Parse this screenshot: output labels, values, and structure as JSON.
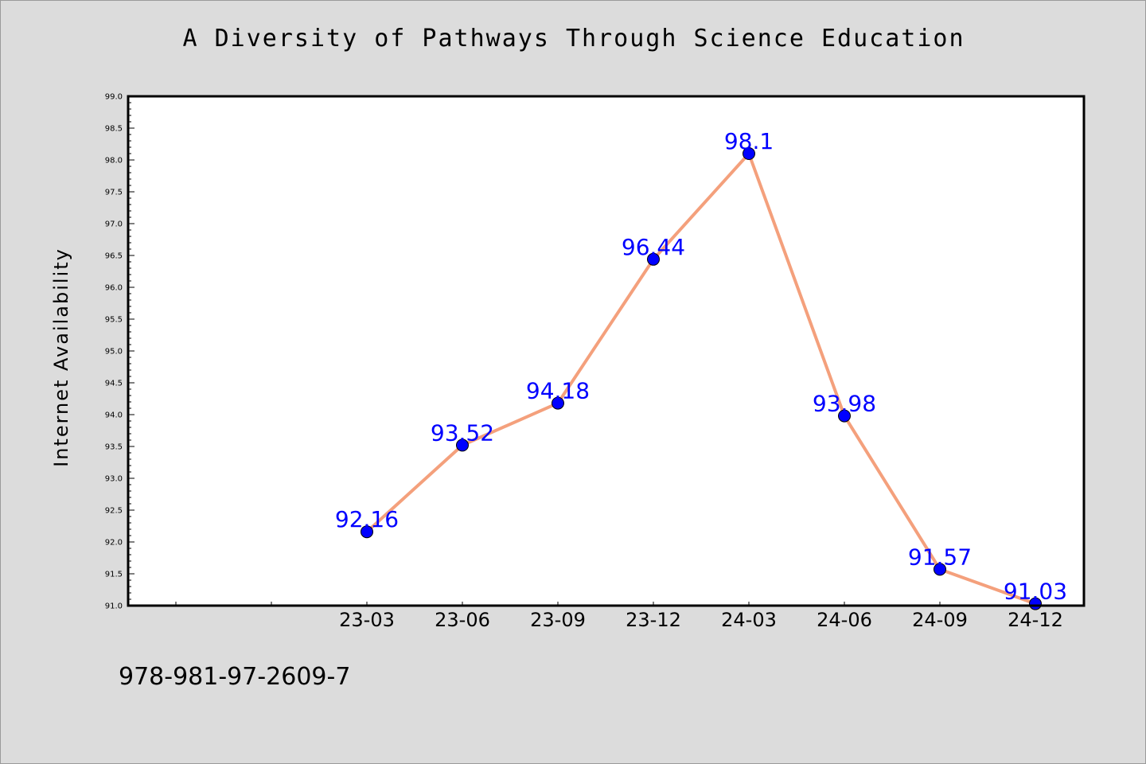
{
  "title": "A Diversity of Pathways Through Science Education",
  "footer_text": "978-981-97-2609-7",
  "colors": {
    "background": "#dcdcdc",
    "plot_background": "#ffffff",
    "line": "#f4a07c",
    "marker": "#0000ff",
    "data_label": "#0000ff"
  },
  "chart_data": {
    "type": "line",
    "title": "A Diversity of Pathways Through Science Education",
    "xlabel": "",
    "ylabel": "Internet Availability",
    "categories": [
      "23-03",
      "23-06",
      "23-09",
      "23-12",
      "24-03",
      "24-06",
      "24-09",
      "24-12"
    ],
    "series": [
      {
        "values": [
          92.16,
          93.52,
          94.18,
          96.44,
          98.1,
          93.98,
          91.57,
          91.03
        ],
        "data_labels": [
          "92.16",
          "93.52",
          "94.18",
          "96.44",
          "98.1",
          "93.98",
          "91.57",
          "91.03"
        ]
      }
    ],
    "ylim": [
      91.0,
      99.0
    ],
    "yticks": [
      "91.0",
      "91.5",
      "92.0",
      "92.5",
      "93.0",
      "93.5",
      "94.0",
      "94.5",
      "95.0",
      "95.5",
      "96.0",
      "96.5",
      "97.0",
      "97.5",
      "98.0",
      "98.5",
      "99.0"
    ],
    "grid": false,
    "legend": "none"
  }
}
